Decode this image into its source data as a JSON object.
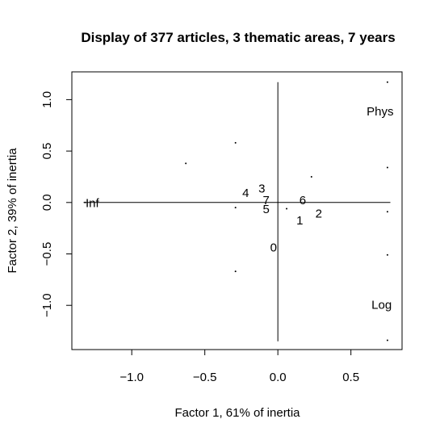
{
  "chart_data": {
    "type": "scatter",
    "title": "Display of 377 articles, 3 thematic areas, 7 years",
    "xlabel": "Factor 1, 61% of inertia",
    "ylabel": "Factor 2, 39% of inertia",
    "xlim": [
      -1.41,
      0.85
    ],
    "ylim": [
      -1.43,
      1.27
    ],
    "xticks": [
      {
        "value": -1.0,
        "label": "−1.0"
      },
      {
        "value": -0.5,
        "label": "−0.5"
      },
      {
        "value": 0.0,
        "label": "0.0"
      },
      {
        "value": 0.5,
        "label": "0.5"
      }
    ],
    "yticks": [
      {
        "value": -1.0,
        "label": "−1.0"
      },
      {
        "value": -0.5,
        "label": "−0.5"
      },
      {
        "value": 0.0,
        "label": "0.0"
      },
      {
        "value": 0.5,
        "label": "0.5"
      },
      {
        "value": 1.0,
        "label": "1.0"
      }
    ],
    "grid": false,
    "axis_lines": {
      "horizontal": {
        "y": 0.0,
        "x_from": -1.33,
        "x_to": 0.77
      },
      "vertical": {
        "x": 0.0,
        "y_from": -1.35,
        "y_to": 1.17
      }
    },
    "labeled_points": [
      {
        "label": "Phys",
        "x": 0.7,
        "y": 0.88
      },
      {
        "label": "Inf",
        "x": -1.27,
        "y": -0.01
      },
      {
        "label": "Log",
        "x": 0.71,
        "y": -1.0
      },
      {
        "label": "0",
        "x": -0.03,
        "y": -0.44
      },
      {
        "label": "1",
        "x": 0.15,
        "y": -0.18
      },
      {
        "label": "2",
        "x": 0.28,
        "y": -0.11
      },
      {
        "label": "3",
        "x": -0.11,
        "y": 0.13
      },
      {
        "label": "4",
        "x": -0.22,
        "y": 0.09
      },
      {
        "label": "5",
        "x": -0.08,
        "y": -0.07
      },
      {
        "label": "6",
        "x": 0.17,
        "y": 0.02
      },
      {
        "label": "7",
        "x": -0.08,
        "y": 0.02
      }
    ],
    "dots": [
      {
        "x": 0.75,
        "y": 1.17
      },
      {
        "x": -0.29,
        "y": 0.58
      },
      {
        "x": -0.63,
        "y": 0.38
      },
      {
        "x": 0.75,
        "y": 0.34
      },
      {
        "x": 0.23,
        "y": 0.25
      },
      {
        "x": -0.29,
        "y": -0.05
      },
      {
        "x": 0.06,
        "y": -0.06
      },
      {
        "x": 0.75,
        "y": -0.09
      },
      {
        "x": 0.75,
        "y": -0.51
      },
      {
        "x": -0.29,
        "y": -0.67
      },
      {
        "x": 0.75,
        "y": -1.34
      },
      {
        "x": -1.32,
        "y": 0.0
      }
    ]
  }
}
